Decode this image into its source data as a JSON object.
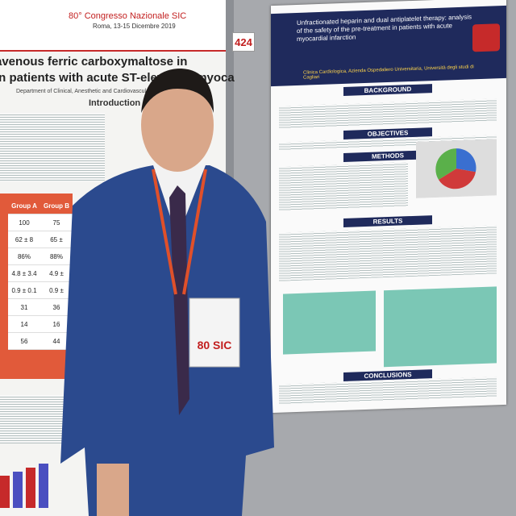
{
  "left_poster": {
    "congress": "80° Congresso Nazionale SIC",
    "dates": "Roma, 13-15 Dicembre 2019",
    "title_line1": "avenous ferric carboxymaltose in",
    "title_line2": "in patients with acute ST-elevation myoca",
    "department": "Department of Clinical, Anesthetic and Cardiovascular Sciences",
    "section": "Introduction",
    "table_headers": [
      "Group A",
      "Group B"
    ],
    "table_rows": [
      [
        "100",
        "75"
      ],
      [
        "62 ± 8",
        "65 ±"
      ],
      [
        "86%",
        "88%"
      ],
      [
        "4.8 ± 3.4",
        "4.9 ±"
      ],
      [
        "0.9 ± 0.1",
        "0.9 ±"
      ],
      [
        "31",
        "36"
      ],
      [
        "14",
        "16"
      ],
      [
        "56",
        "44"
      ]
    ]
  },
  "board_number": "424",
  "right_poster": {
    "title": "Unfractionated heparin and dual antiplatelet therapy: analysis of the safety of the pre-treatment in patients with acute myocardial infarction",
    "affiliation": "Clinica Cardiologica, Azienda Ospedaliero Universitaria, Università degli studi di Cagliari",
    "sections": [
      "BACKGROUND",
      "OBJECTIVES",
      "METHODS",
      "RESULTS",
      "CONCLUSIONS"
    ]
  },
  "badge": {
    "logo": "80 SIC"
  }
}
